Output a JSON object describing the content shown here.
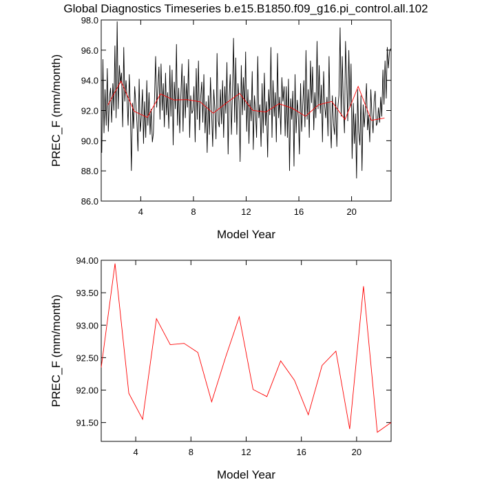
{
  "chart_data": [
    {
      "type": "line",
      "title": "Global Diagnostics Timeseries b.e15.B1850.f09_g16.pi_control.all.102",
      "xlabel": "Model Year",
      "ylabel": "PREC_F (mm/month)",
      "xlim": [
        1,
        23
      ],
      "xticks": [
        4,
        8,
        12,
        16,
        20
      ],
      "ylim": [
        86,
        98
      ],
      "yticks": [
        {
          "value": 86,
          "label": "86.0"
        },
        {
          "value": 88,
          "label": "88.0"
        },
        {
          "value": 90,
          "label": "90.0"
        },
        {
          "value": 92,
          "label": "92.0"
        },
        {
          "value": 94,
          "label": "94.0"
        },
        {
          "value": 96,
          "label": "96.0"
        },
        {
          "value": 98,
          "label": "98.0"
        }
      ],
      "series": [
        {
          "color": "#000000",
          "x": [
            1.04,
            1.13,
            1.21,
            1.29,
            1.38,
            1.46,
            1.54,
            1.63,
            1.71,
            1.79,
            1.88,
            1.96,
            2.04,
            2.13,
            2.21,
            2.29,
            2.38,
            2.46,
            2.54,
            2.63,
            2.71,
            2.79,
            2.88,
            2.96,
            3.04,
            3.13,
            3.21,
            3.29,
            3.38,
            3.46,
            3.54,
            3.63,
            3.71,
            3.79,
            3.88,
            3.96,
            4.04,
            4.13,
            4.21,
            4.29,
            4.38,
            4.46,
            4.54,
            4.63,
            4.71,
            4.79,
            4.88,
            4.96,
            5.04,
            5.13,
            5.21,
            5.29,
            5.38,
            5.46,
            5.54,
            5.63,
            5.71,
            5.79,
            5.88,
            5.96,
            6.04,
            6.13,
            6.21,
            6.29,
            6.38,
            6.46,
            6.54,
            6.63,
            6.71,
            6.79,
            6.88,
            6.96,
            7.04,
            7.13,
            7.21,
            7.29,
            7.38,
            7.46,
            7.54,
            7.63,
            7.71,
            7.79,
            7.88,
            7.96,
            8.04,
            8.13,
            8.21,
            8.29,
            8.38,
            8.46,
            8.54,
            8.63,
            8.71,
            8.79,
            8.88,
            8.96,
            9.04,
            9.13,
            9.21,
            9.29,
            9.38,
            9.46,
            9.54,
            9.63,
            9.71,
            9.79,
            9.88,
            9.96,
            10.04,
            10.13,
            10.21,
            10.29,
            10.38,
            10.46,
            10.54,
            10.63,
            10.71,
            10.79,
            10.88,
            10.96,
            11.04,
            11.13,
            11.21,
            11.29,
            11.38,
            11.46,
            11.54,
            11.63,
            11.71,
            11.79,
            11.88,
            11.96,
            12.04,
            12.13,
            12.21,
            12.29,
            12.38,
            12.46,
            12.54,
            12.63,
            12.71,
            12.79,
            12.88,
            12.96,
            13.04,
            13.13,
            13.21,
            13.29,
            13.38,
            13.46,
            13.54,
            13.63,
            13.71,
            13.79,
            13.88,
            13.96,
            14.04,
            14.13,
            14.21,
            14.29,
            14.38,
            14.46,
            14.54,
            14.63,
            14.71,
            14.79,
            14.88,
            14.96,
            15.04,
            15.13,
            15.21,
            15.29,
            15.38,
            15.46,
            15.54,
            15.63,
            15.71,
            15.79,
            15.88,
            15.96,
            16.04,
            16.13,
            16.21,
            16.29,
            16.38,
            16.46,
            16.54,
            16.63,
            16.71,
            16.79,
            16.88,
            16.96,
            17.04,
            17.13,
            17.21,
            17.29,
            17.38,
            17.46,
            17.54,
            17.63,
            17.71,
            17.79,
            17.88,
            17.96,
            18.04,
            18.13,
            18.21,
            18.29,
            18.38,
            18.46,
            18.54,
            18.63,
            18.71,
            18.79,
            18.88,
            18.96,
            19.04,
            19.13,
            19.21,
            19.29,
            19.38,
            19.46,
            19.54,
            19.63,
            19.71,
            19.79,
            19.88,
            19.96,
            20.04,
            20.13,
            20.21,
            20.29,
            20.38,
            20.46,
            20.54,
            20.63,
            20.71,
            20.79,
            20.88,
            20.96,
            21.04,
            21.13,
            21.21,
            21.29,
            21.38,
            21.46,
            21.54,
            21.63,
            21.71,
            21.79,
            21.88,
            21.96,
            22.04,
            22.13,
            22.21,
            22.29,
            22.38,
            22.46,
            22.54,
            22.63,
            22.71,
            22.79,
            22.88,
            22.96
          ],
          "values": [
            89.2,
            95.4,
            90.5,
            93.4,
            91.0,
            94.8,
            90.6,
            92.9,
            93.5,
            91.2,
            93.8,
            92.0,
            96.3,
            91.5,
            97.9,
            92.1,
            95.0,
            93.8,
            94.5,
            90.9,
            96.2,
            92.6,
            94.0,
            92.8,
            91.0,
            94.4,
            92.1,
            88.0,
            92.5,
            90.8,
            93.6,
            92.4,
            91.2,
            89.3,
            94.1,
            90.6,
            91.5,
            93.4,
            89.8,
            92.6,
            90.2,
            94.0,
            91.0,
            93.2,
            90.4,
            92.1,
            89.9,
            90.5,
            92.7,
            95.6,
            92.2,
            93.4,
            94.9,
            91.4,
            95.1,
            92.0,
            93.8,
            90.9,
            94.5,
            91.7,
            93.2,
            90.8,
            95.0,
            91.6,
            94.7,
            89.7,
            93.9,
            92.1,
            96.4,
            91.0,
            93.5,
            90.5,
            92.9,
            95.1,
            90.6,
            94.3,
            91.5,
            93.8,
            92.2,
            95.4,
            90.2,
            93.0,
            91.8,
            92.0,
            93.6,
            89.9,
            94.8,
            91.4,
            95.3,
            90.7,
            92.8,
            93.9,
            91.2,
            94.4,
            90.5,
            92.6,
            89.2,
            93.0,
            90.4,
            94.2,
            91.8,
            89.6,
            93.4,
            92.0,
            90.1,
            95.8,
            91.3,
            90.9,
            93.4,
            91.1,
            94.0,
            90.2,
            93.6,
            91.8,
            95.2,
            89.1,
            92.9,
            94.4,
            90.4,
            93.2,
            96.8,
            91.2,
            95.5,
            90.4,
            93.8,
            92.6,
            88.6,
            95.0,
            91.7,
            94.2,
            92.0,
            95.9,
            90.6,
            93.4,
            89.8,
            92.7,
            91.3,
            94.6,
            89.4,
            93.0,
            91.9,
            90.2,
            95.6,
            91.5,
            92.4,
            89.6,
            93.8,
            90.5,
            94.5,
            91.0,
            92.6,
            88.9,
            93.4,
            91.7,
            96.2,
            90.2,
            94.0,
            91.6,
            93.2,
            89.9,
            95.8,
            91.5,
            92.9,
            90.4,
            94.2,
            92.6,
            93.6,
            90.3,
            93.6,
            90.2,
            94.1,
            88.0,
            92.8,
            91.4,
            93.3,
            88.3,
            94.4,
            90.5,
            92.7,
            91.6,
            89.1,
            93.8,
            90.6,
            92.3,
            94.0,
            90.9,
            96.0,
            91.4,
            93.4,
            90.2,
            95.3,
            92.5,
            94.9,
            90.7,
            93.2,
            91.5,
            96.6,
            92.1,
            95.0,
            91.8,
            93.7,
            89.9,
            94.6,
            92.3,
            91.5,
            92.9,
            90.3,
            95.6,
            91.2,
            89.5,
            93.0,
            91.1,
            90.4,
            92.9,
            89.6,
            92.2,
            93.0,
            97.5,
            91.6,
            95.6,
            92.3,
            90.5,
            96.6,
            93.9,
            91.3,
            96.0,
            92.2,
            95.1,
            88.8,
            92.5,
            89.8,
            91.8,
            87.5,
            93.4,
            90.6,
            89.7,
            93.0,
            88.0,
            92.4,
            90.9,
            92.0,
            93.8,
            90.7,
            91.7,
            89.9,
            93.4,
            91.8,
            90.5,
            92.6,
            93.3,
            91.0,
            91.2,
            92.2,
            91.2,
            92.9,
            91.6,
            94.7,
            92.4,
            95.3,
            92.8,
            96.2,
            94.8,
            95.9,
            96.1
          ]
        },
        {
          "color": "#ff0000",
          "x": [
            1.5,
            2.5,
            3.5,
            4.5,
            5.5,
            6.5,
            7.5,
            8.5,
            9.5,
            10.5,
            11.5,
            12.5,
            13.5,
            14.5,
            15.5,
            16.5,
            17.5,
            18.5,
            19.5,
            20.5,
            21.5,
            22.5
          ],
          "values": [
            92.35,
            93.95,
            91.95,
            91.55,
            93.1,
            92.7,
            92.72,
            92.58,
            91.82,
            92.5,
            93.13,
            92.01,
            91.9,
            92.45,
            92.15,
            91.62,
            92.38,
            92.6,
            91.4,
            93.6,
            91.35,
            91.5
          ]
        }
      ]
    },
    {
      "type": "line",
      "xlabel": "Model Year",
      "ylabel": "PREC_F (mm/month)",
      "xlim": [
        1.5,
        22.5
      ],
      "xticks": [
        4,
        8,
        12,
        16,
        20
      ],
      "ylim": [
        91.21,
        94
      ],
      "yticks": [
        {
          "value": 91.5,
          "label": "91.50"
        },
        {
          "value": 92,
          "label": "92.00"
        },
        {
          "value": 92.5,
          "label": "92.50"
        },
        {
          "value": 93,
          "label": "93.00"
        },
        {
          "value": 93.5,
          "label": "93.50"
        },
        {
          "value": 94,
          "label": "94.00"
        }
      ],
      "series": [
        {
          "color": "#ff0000",
          "x": [
            1.5,
            2.5,
            3.5,
            4.5,
            5.5,
            6.5,
            7.5,
            8.5,
            9.5,
            10.5,
            11.5,
            12.5,
            13.5,
            14.5,
            15.5,
            16.5,
            17.5,
            18.5,
            19.5,
            20.5,
            21.5,
            22.5
          ],
          "values": [
            92.35,
            93.95,
            91.95,
            91.55,
            93.1,
            92.7,
            92.72,
            92.58,
            91.82,
            92.5,
            93.13,
            92.01,
            91.9,
            92.45,
            92.15,
            91.62,
            92.38,
            92.6,
            91.4,
            93.6,
            91.35,
            91.5
          ]
        }
      ]
    }
  ]
}
